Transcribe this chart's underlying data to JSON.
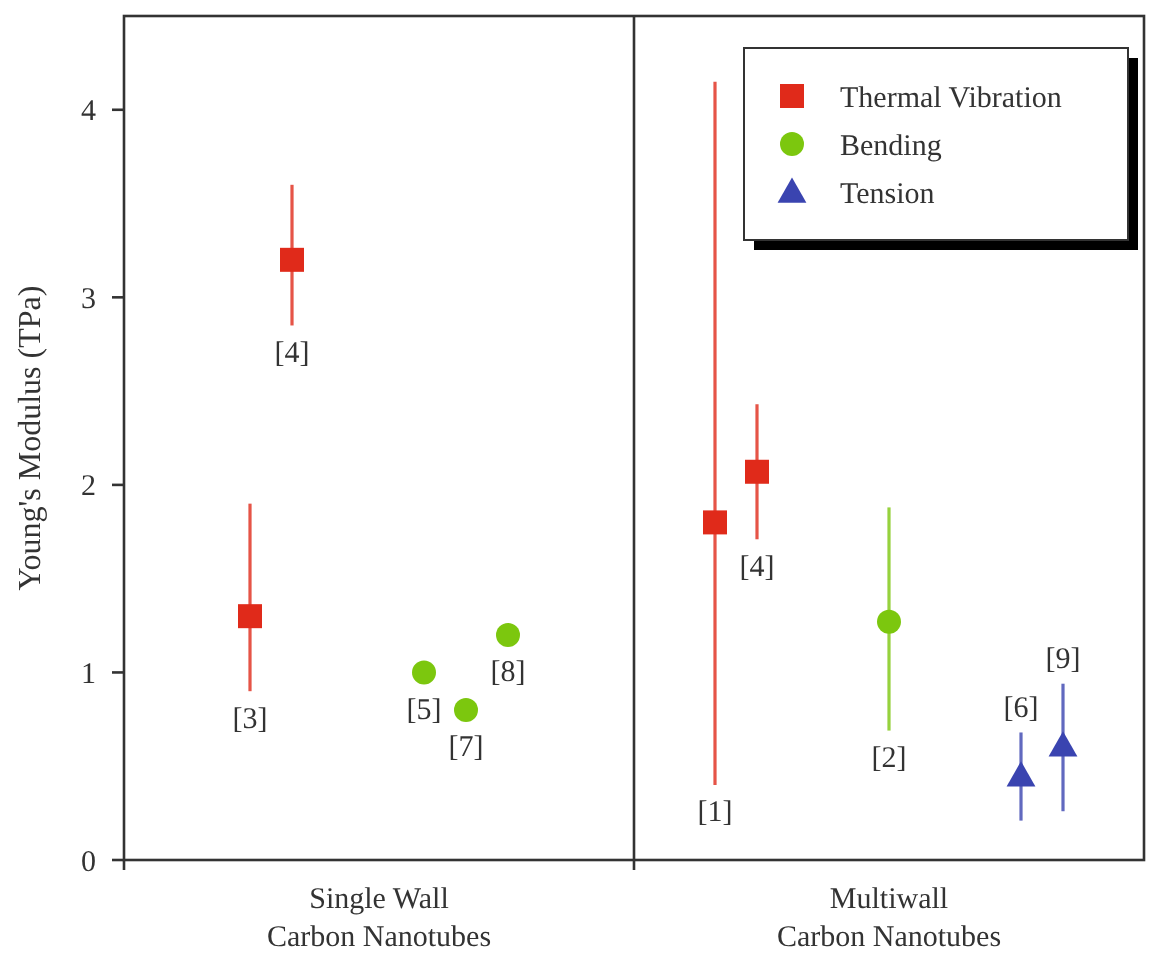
{
  "chart_data": {
    "type": "scatter",
    "ylabel": "Young's Modulus (TPa)",
    "ylim": [
      0,
      4.5
    ],
    "yticks": [
      0,
      1,
      2,
      3,
      4
    ],
    "categories": [
      "Single Wall\nCarbon Nanotubes",
      "Multiwall\nCarbon Nanotubes"
    ],
    "legend": "top right",
    "series": [
      {
        "name": "Thermal Vibration",
        "color": "#e02a1a",
        "marker": "square",
        "x": [
          "Single Wall\nCarbon Nanotubes",
          "Single Wall\nCarbon Nanotubes",
          "Multiwall\nCarbon Nanotubes",
          "Multiwall\nCarbon Nanotubes"
        ],
        "values": [
          1.3,
          3.2,
          1.8,
          2.07
        ],
        "errors": [
          [
            0.9,
            1.9
          ],
          [
            2.85,
            3.6
          ],
          [
            0.4,
            4.15
          ],
          [
            1.71,
            2.43
          ]
        ]
      },
      {
        "name": "Bending",
        "color": "#7cc70e",
        "marker": "circle",
        "x": [
          "Single Wall\nCarbon Nanotubes",
          "Single Wall\nCarbon Nanotubes",
          "Single Wall\nCarbon Nanotubes",
          "Multiwall\nCarbon Nanotubes"
        ],
        "values": [
          1.0,
          0.8,
          1.2,
          1.27
        ],
        "errors": [
          null,
          null,
          null,
          [
            0.69,
            1.88
          ]
        ]
      },
      {
        "name": "Tension",
        "color": "#3a44b0",
        "marker": "triangle",
        "x": [
          "Multiwall\nCarbon Nanotubes",
          "Multiwall\nCarbon Nanotubes"
        ],
        "values": [
          0.45,
          0.61
        ],
        "errors": [
          [
            0.21,
            0.68
          ],
          [
            0.26,
            0.94
          ]
        ]
      }
    ],
    "annotations": [
      "[3]",
      "[4]",
      "[5]",
      "[7]",
      "[8]",
      "[1]",
      "[4]",
      "[2]",
      "[6]",
      "[9]"
    ]
  }
}
